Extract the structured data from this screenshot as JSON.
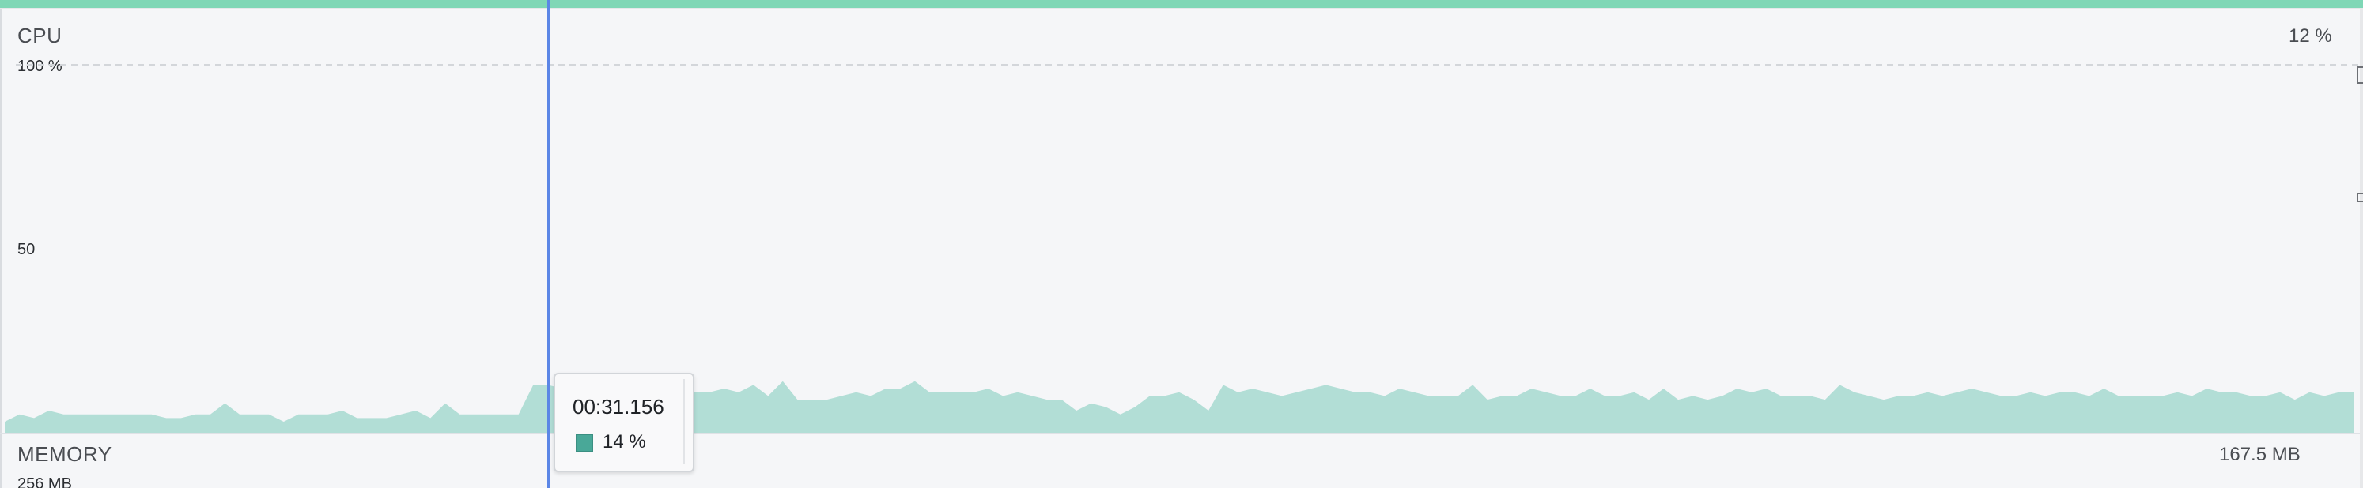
{
  "cpu": {
    "label": "CPU",
    "current_value": "12 %",
    "axis_top": "100 %",
    "axis_mid": "50",
    "series_color": "#b2ded6",
    "samples_percent": [
      3,
      5,
      4,
      6,
      5,
      5,
      5,
      5,
      5,
      5,
      5,
      4,
      4,
      5,
      5,
      8,
      5,
      5,
      5,
      3,
      5,
      5,
      5,
      6,
      4,
      4,
      4,
      5,
      6,
      4,
      8,
      5,
      5,
      5,
      5,
      5,
      13,
      13,
      12,
      12,
      11,
      12,
      11,
      12,
      11,
      10,
      12,
      11,
      11,
      12,
      11,
      13,
      10,
      14,
      9,
      9,
      9,
      10,
      11,
      10,
      12,
      12,
      14,
      11,
      11,
      11,
      11,
      12,
      10,
      11,
      10,
      9,
      9,
      6,
      8,
      7,
      5,
      7,
      10,
      10,
      11,
      9,
      6,
      13,
      11,
      12,
      11,
      10,
      11,
      12,
      13,
      12,
      11,
      11,
      10,
      12,
      11,
      10,
      10,
      10,
      13,
      9,
      10,
      10,
      12,
      11,
      10,
      10,
      12,
      10,
      10,
      11,
      9,
      12,
      9,
      10,
      9,
      10,
      12,
      11,
      12,
      10,
      10,
      10,
      9,
      13,
      11,
      10,
      9,
      10,
      10,
      11,
      10,
      11,
      12,
      11,
      10,
      10,
      11,
      10,
      11,
      11,
      10,
      12,
      10,
      10,
      10,
      10,
      11,
      10,
      12,
      11,
      11,
      10,
      10,
      11,
      9,
      11,
      10,
      11,
      11
    ]
  },
  "memory": {
    "label": "MEMORY",
    "current_value": "167.5 MB",
    "axis_top": "256 MB"
  },
  "tooltip": {
    "time": "00:31.156",
    "value": "14 %",
    "swatch_color": "#49a898"
  },
  "colors": {
    "accent_strip": "#7fd7b6",
    "cursor_line": "#5b86e6",
    "background": "#f5f6f8"
  }
}
